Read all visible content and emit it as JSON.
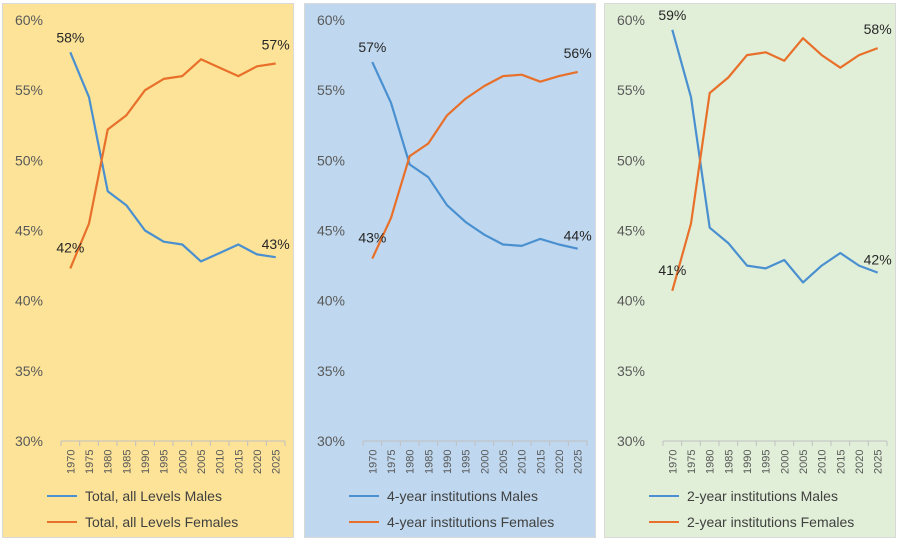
{
  "chart_data": [
    {
      "type": "line",
      "background": "#fce398",
      "categories": [
        "1970",
        "1975",
        "1980",
        "1985",
        "1990",
        "1995",
        "2000",
        "2005",
        "2010",
        "2015",
        "2020",
        "2025"
      ],
      "ylim": [
        30,
        60
      ],
      "yticks": [
        "30%",
        "35%",
        "40%",
        "45%",
        "50%",
        "55%",
        "60%"
      ],
      "grid": false,
      "legend_position": "bottom",
      "series": [
        {
          "name": "Total, all Levels Males",
          "color": "#4a90d0",
          "values": [
            57.7,
            54.5,
            47.8,
            46.8,
            45.0,
            44.2,
            44.0,
            42.8,
            43.4,
            44.0,
            43.3,
            43.1
          ],
          "labels": [
            {
              "index": 0,
              "text": "58%"
            },
            {
              "index": 11,
              "text": "43%"
            }
          ]
        },
        {
          "name": "Total, all Levels Females",
          "color": "#e8702a",
          "values": [
            42.3,
            45.5,
            52.2,
            53.2,
            55.0,
            55.8,
            56.0,
            57.2,
            56.6,
            56.0,
            56.7,
            56.9
          ],
          "labels": [
            {
              "index": 0,
              "text": "42%"
            },
            {
              "index": 11,
              "text": "57%"
            }
          ]
        }
      ]
    },
    {
      "type": "line",
      "background": "#bfd8ef",
      "categories": [
        "1970",
        "1975",
        "1980",
        "1985",
        "1990",
        "1995",
        "2000",
        "2005",
        "2010",
        "2015",
        "2020",
        "2025"
      ],
      "ylim": [
        30,
        60
      ],
      "yticks": [
        "30%",
        "35%",
        "40%",
        "45%",
        "50%",
        "55%",
        "60%"
      ],
      "grid": false,
      "legend_position": "bottom",
      "series": [
        {
          "name": "4-year institutions Males",
          "color": "#4a90d0",
          "values": [
            57.0,
            54.1,
            49.7,
            48.8,
            46.8,
            45.6,
            44.7,
            44.0,
            43.9,
            44.4,
            44.0,
            43.7
          ],
          "labels": [
            {
              "index": 0,
              "text": "57%"
            },
            {
              "index": 11,
              "text": "44%"
            }
          ]
        },
        {
          "name": "4-year institutions Females",
          "color": "#e8702a",
          "values": [
            43.0,
            45.9,
            50.3,
            51.2,
            53.2,
            54.4,
            55.3,
            56.0,
            56.1,
            55.6,
            56.0,
            56.3
          ],
          "labels": [
            {
              "index": 0,
              "text": "43%"
            },
            {
              "index": 11,
              "text": "56%"
            }
          ]
        }
      ]
    },
    {
      "type": "line",
      "background": "#e1efd8",
      "categories": [
        "1970",
        "1975",
        "1980",
        "1985",
        "1990",
        "1995",
        "2000",
        "2005",
        "2010",
        "2015",
        "2020",
        "2025"
      ],
      "ylim": [
        30,
        60
      ],
      "yticks": [
        "30%",
        "35%",
        "40%",
        "45%",
        "50%",
        "55%",
        "60%"
      ],
      "grid": false,
      "legend_position": "bottom",
      "series": [
        {
          "name": "2-year institutions Males",
          "color": "#4a90d0",
          "values": [
            59.3,
            54.5,
            45.2,
            44.1,
            42.5,
            42.3,
            42.9,
            41.3,
            42.5,
            43.4,
            42.5,
            42.0
          ],
          "labels": [
            {
              "index": 0,
              "text": "59%"
            },
            {
              "index": 11,
              "text": "42%"
            }
          ]
        },
        {
          "name": "2-year institutions Females",
          "color": "#e8702a",
          "values": [
            40.7,
            45.5,
            54.8,
            55.9,
            57.5,
            57.7,
            57.1,
            58.7,
            57.5,
            56.6,
            57.5,
            58.0
          ],
          "labels": [
            {
              "index": 0,
              "text": "41%"
            },
            {
              "index": 11,
              "text": "58%"
            }
          ]
        }
      ]
    }
  ]
}
